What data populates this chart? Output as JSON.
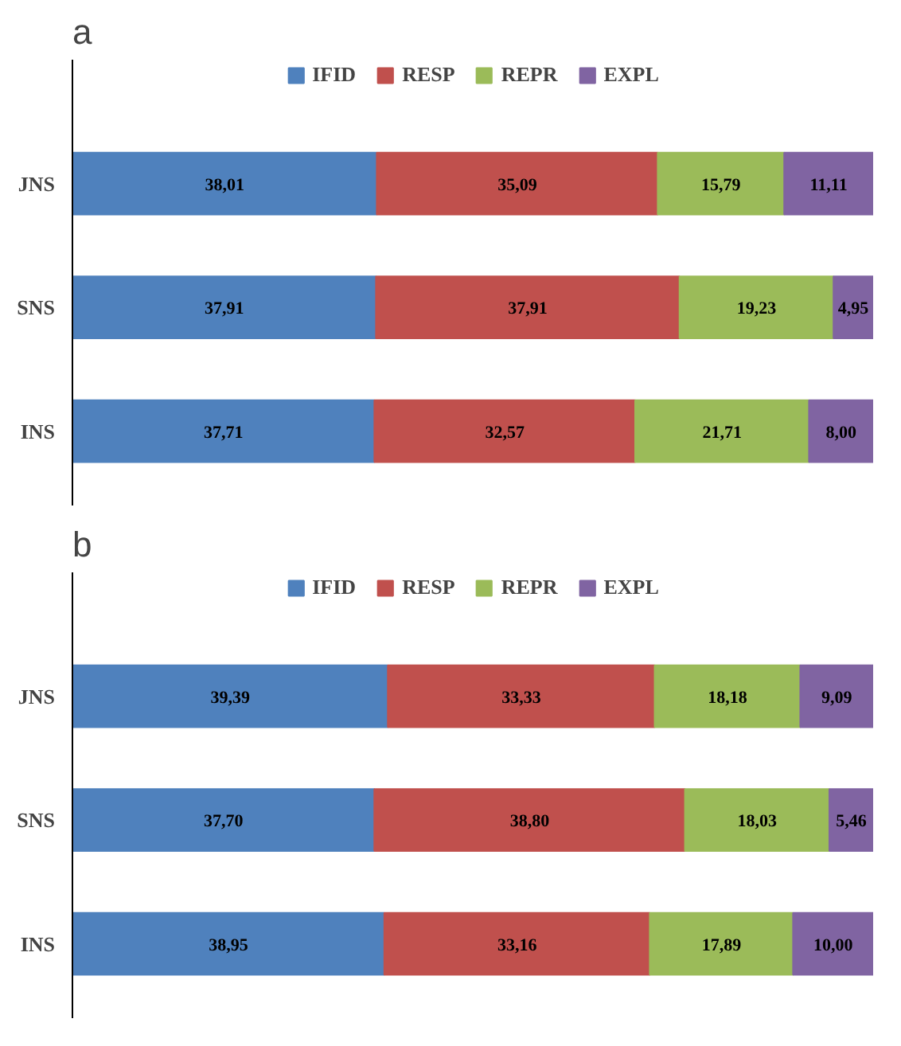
{
  "chart_data": [
    {
      "type": "bar",
      "title": "a",
      "orientation": "horizontal",
      "stacked": true,
      "legend": "top",
      "grid": false,
      "tick_labels": "y",
      "categories": [
        "JNS",
        "SNS",
        "INS"
      ],
      "series": [
        {
          "name": "IFID",
          "color": "#4f81bd",
          "values": [
            38.01,
            37.91,
            37.71
          ],
          "value_labels": [
            "38,01",
            "37,91",
            "37,71"
          ]
        },
        {
          "name": "RESP",
          "color": "#c0504d",
          "values": [
            35.09,
            37.91,
            32.57
          ],
          "value_labels": [
            "35,09",
            "37,91",
            "32,57"
          ]
        },
        {
          "name": "REPR",
          "color": "#9bbb59",
          "values": [
            15.79,
            19.23,
            21.71
          ],
          "value_labels": [
            "15,79",
            "19,23",
            "21,71"
          ]
        },
        {
          "name": "EXPL",
          "color": "#8064a2",
          "values": [
            11.11,
            4.95,
            8.0
          ],
          "value_labels": [
            "11,11",
            "4,95",
            "8,00"
          ]
        }
      ]
    },
    {
      "type": "bar",
      "title": "b",
      "orientation": "horizontal",
      "stacked": true,
      "legend": "top",
      "grid": false,
      "tick_labels": "y",
      "categories": [
        "JNS",
        "SNS",
        "INS"
      ],
      "series": [
        {
          "name": "IFID",
          "color": "#4f81bd",
          "values": [
            39.39,
            37.7,
            38.95
          ],
          "value_labels": [
            "39,39",
            "37,70",
            "38,95"
          ]
        },
        {
          "name": "RESP",
          "color": "#c0504d",
          "values": [
            33.33,
            38.8,
            33.16
          ],
          "value_labels": [
            "33,33",
            "38,80",
            "33,16"
          ]
        },
        {
          "name": "REPR",
          "color": "#9bbb59",
          "values": [
            18.18,
            18.03,
            17.89
          ],
          "value_labels": [
            "18,18",
            "18,03",
            "17,89"
          ]
        },
        {
          "name": "EXPL",
          "color": "#8064a2",
          "values": [
            9.09,
            5.46,
            10.0
          ],
          "value_labels": [
            "9,09",
            "5,46",
            "10,00"
          ]
        }
      ]
    }
  ]
}
